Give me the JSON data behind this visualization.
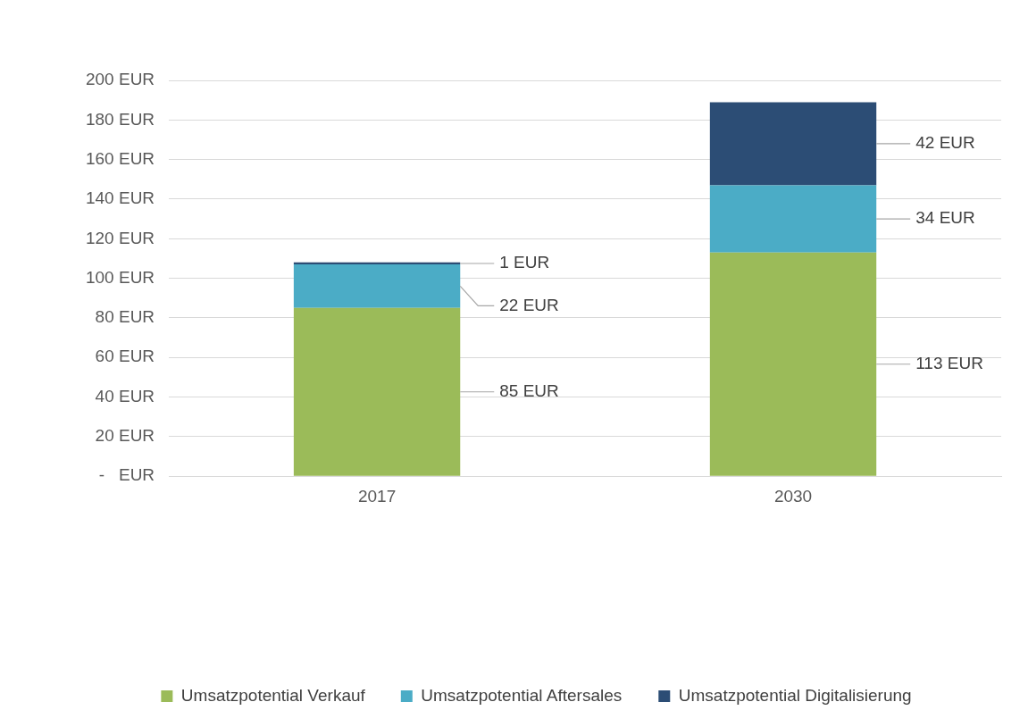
{
  "chart_data": {
    "type": "bar",
    "stacked": true,
    "categories": [
      "2017",
      "2030"
    ],
    "series": [
      {
        "name": "Umsatzpotential Verkauf",
        "color": "#9bbb59",
        "values": [
          85,
          113
        ],
        "value_labels": [
          "85 EUR",
          "113 EUR"
        ]
      },
      {
        "name": "Umsatzpotential Aftersales",
        "color": "#4bacc6",
        "values": [
          22,
          34
        ],
        "value_labels": [
          "22 EUR",
          "34 EUR"
        ]
      },
      {
        "name": "Umsatzpotential Digitalisierung",
        "color": "#2c4d75",
        "values": [
          1,
          42
        ],
        "value_labels": [
          "1 EUR",
          "42 EUR"
        ]
      }
    ],
    "ylim": [
      0,
      200
    ],
    "yticks": [
      {
        "value": 0,
        "label": "-   EUR"
      },
      {
        "value": 20,
        "label": "20 EUR"
      },
      {
        "value": 40,
        "label": "40 EUR"
      },
      {
        "value": 60,
        "label": "60 EUR"
      },
      {
        "value": 80,
        "label": "80 EUR"
      },
      {
        "value": 100,
        "label": "100 EUR"
      },
      {
        "value": 120,
        "label": "120 EUR"
      },
      {
        "value": 140,
        "label": "140 EUR"
      },
      {
        "value": 160,
        "label": "160 EUR"
      },
      {
        "value": 180,
        "label": "180 EUR"
      },
      {
        "value": 200,
        "label": "200 EUR"
      }
    ],
    "grid": "y",
    "legend": "bottom"
  }
}
